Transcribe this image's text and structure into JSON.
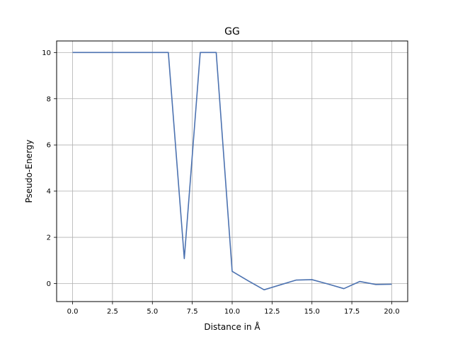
{
  "chart_data": {
    "type": "line",
    "title": "GG",
    "xlabel": "Distance in Å",
    "ylabel": "Pseudo-Energy",
    "xlim": [
      -1,
      21
    ],
    "ylim": [
      -0.78,
      10.5
    ],
    "x_ticks": [
      0.0,
      2.5,
      5.0,
      7.5,
      10.0,
      12.5,
      15.0,
      17.5,
      20.0
    ],
    "x_tick_labels": [
      "0.0",
      "2.5",
      "5.0",
      "7.5",
      "10.0",
      "12.5",
      "15.0",
      "17.5",
      "20.0"
    ],
    "y_ticks": [
      0,
      2,
      4,
      6,
      8,
      10
    ],
    "y_tick_labels": [
      "0",
      "2",
      "4",
      "6",
      "8",
      "10"
    ],
    "grid": true,
    "series": [
      {
        "color": "#4c72b0",
        "x": [
          0,
          1,
          2,
          3,
          4,
          5,
          6,
          7,
          8,
          9,
          10,
          11,
          12,
          13,
          14,
          15,
          16,
          17,
          18,
          19,
          20
        ],
        "y": [
          10,
          10,
          10,
          10,
          10,
          10,
          10,
          1.08,
          10,
          10,
          0.53,
          0.12,
          -0.27,
          -0.06,
          0.15,
          0.17,
          -0.02,
          -0.22,
          0.09,
          -0.04,
          -0.03
        ]
      }
    ]
  }
}
